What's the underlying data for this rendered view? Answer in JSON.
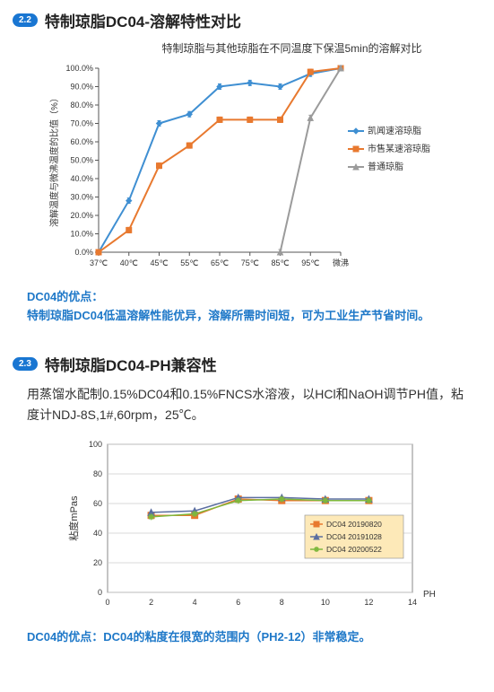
{
  "section22": {
    "badge": "2.2",
    "title": "特制琼脂DC04-溶解特性对比",
    "chart": {
      "type": "line",
      "title": "特制琼脂与其他琼脂在不同温度下保温5min的溶解对比",
      "x_categories": [
        "37℃",
        "40℃",
        "45℃",
        "55℃",
        "65℃",
        "75℃",
        "85℃",
        "95℃",
        "微沸"
      ],
      "ylabel": "溶解温度与微沸温度的比值（%）",
      "ylim": [
        0,
        100
      ],
      "ytick_step": 10,
      "ytick_fmt_suffix": ".0%",
      "background_color": "#ffffff",
      "grid": false,
      "series": [
        {
          "name": "凯闻速溶琼脂",
          "color": "#3f8fd2",
          "marker": "diamond",
          "values": [
            0,
            28,
            70,
            75,
            90,
            92,
            90,
            97,
            100
          ]
        },
        {
          "name": "市售某速溶琼脂",
          "color": "#e8792f",
          "marker": "square",
          "values": [
            0,
            12,
            47,
            58,
            72,
            72,
            72,
            98,
            100
          ]
        },
        {
          "name": "普通琼脂",
          "color": "#9b9b9b",
          "marker": "triangle",
          "values": [
            null,
            null,
            null,
            null,
            null,
            null,
            0,
            73,
            100
          ]
        }
      ],
      "line_width": 2
    },
    "advantage_label": "DC04的优点：",
    "advantage_text": "特制琼脂DC04低温溶解性能优异，溶解所需时间短，可为工业生产节省时间。"
  },
  "section23": {
    "badge": "2.3",
    "title": "特制琼脂DC04-PH兼容性",
    "body": "用蒸馏水配制0.15%DC04和0.15%FNCS水溶液，以HCl和NaOH调节PH值，粘度计NDJ-8S,1#,60rpm，25℃。",
    "chart": {
      "type": "line",
      "xlabel": "PH",
      "ylabel": "粘度mPas",
      "xlim": [
        0,
        14
      ],
      "xtick_step": 2,
      "ylim": [
        0,
        100
      ],
      "ytick_step": 20,
      "background_color": "#ffffff",
      "grid_color": "#cccccc",
      "grid": true,
      "series": [
        {
          "name": "DC04 20190820",
          "color": "#e8792f",
          "marker": "square",
          "values": [
            [
              2,
              52
            ],
            [
              4,
              52
            ],
            [
              6,
              63
            ],
            [
              8,
              62
            ],
            [
              10,
              62
            ],
            [
              12,
              62
            ]
          ]
        },
        {
          "name": "DC04 20191028",
          "color": "#5b6ea1",
          "marker": "triangle",
          "values": [
            [
              2,
              54
            ],
            [
              4,
              55
            ],
            [
              6,
              64
            ],
            [
              8,
              64
            ],
            [
              10,
              63
            ],
            [
              12,
              63
            ]
          ]
        },
        {
          "name": "DC04 20200522",
          "color": "#7fb83d",
          "marker": "asterisk",
          "values": [
            [
              2,
              51
            ],
            [
              4,
              53
            ],
            [
              6,
              62
            ],
            [
              8,
              63
            ],
            [
              10,
              62
            ],
            [
              12,
              62
            ]
          ]
        }
      ],
      "line_width": 1.5,
      "legend_bg": "#fde9b8",
      "legend_border": "#999"
    },
    "advantage_text": "DC04的优点：DC04的粘度在很宽的范围内（PH2-12）非常稳定。"
  }
}
